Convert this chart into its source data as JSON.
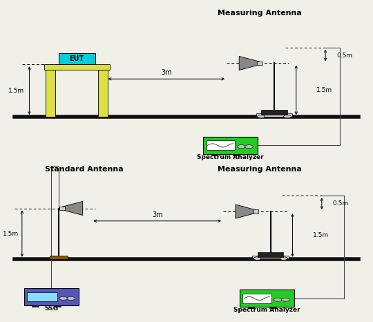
{
  "bg_color": "#f0f0e8",
  "panel_bg": "#ffffff",
  "title_color": "#000000",
  "ground_color": "#111111",
  "eut_box_color": "#00ccdd",
  "eut_stand_color": "#dddd44",
  "antenna_color": "#888888",
  "sa_color": "#22cc22",
  "ssg_color": "#5555bb",
  "wire_color": "#444444",
  "arrow_color": "#000000",
  "dashed_color": "#555555",
  "diagram1": {
    "title": "Measuring Antenna",
    "eut_label": "EUT",
    "dist_3m": "3m",
    "dist_15m_horiz": "1.5m",
    "height_15m": "1.5m",
    "offset_05m": "0.5m",
    "sa_label": "Spectrum Analyzer"
  },
  "diagram2": {
    "std_title": "Standard Antenna",
    "meas_title": "Measuring Antenna",
    "dist_3m": "3m",
    "dist_15m_horiz": "1.5m",
    "height_15m": "1.5m",
    "offset_05m": "0.5m",
    "ssg_label": "SSG",
    "sa_label": "Spectrum Analyzer"
  }
}
